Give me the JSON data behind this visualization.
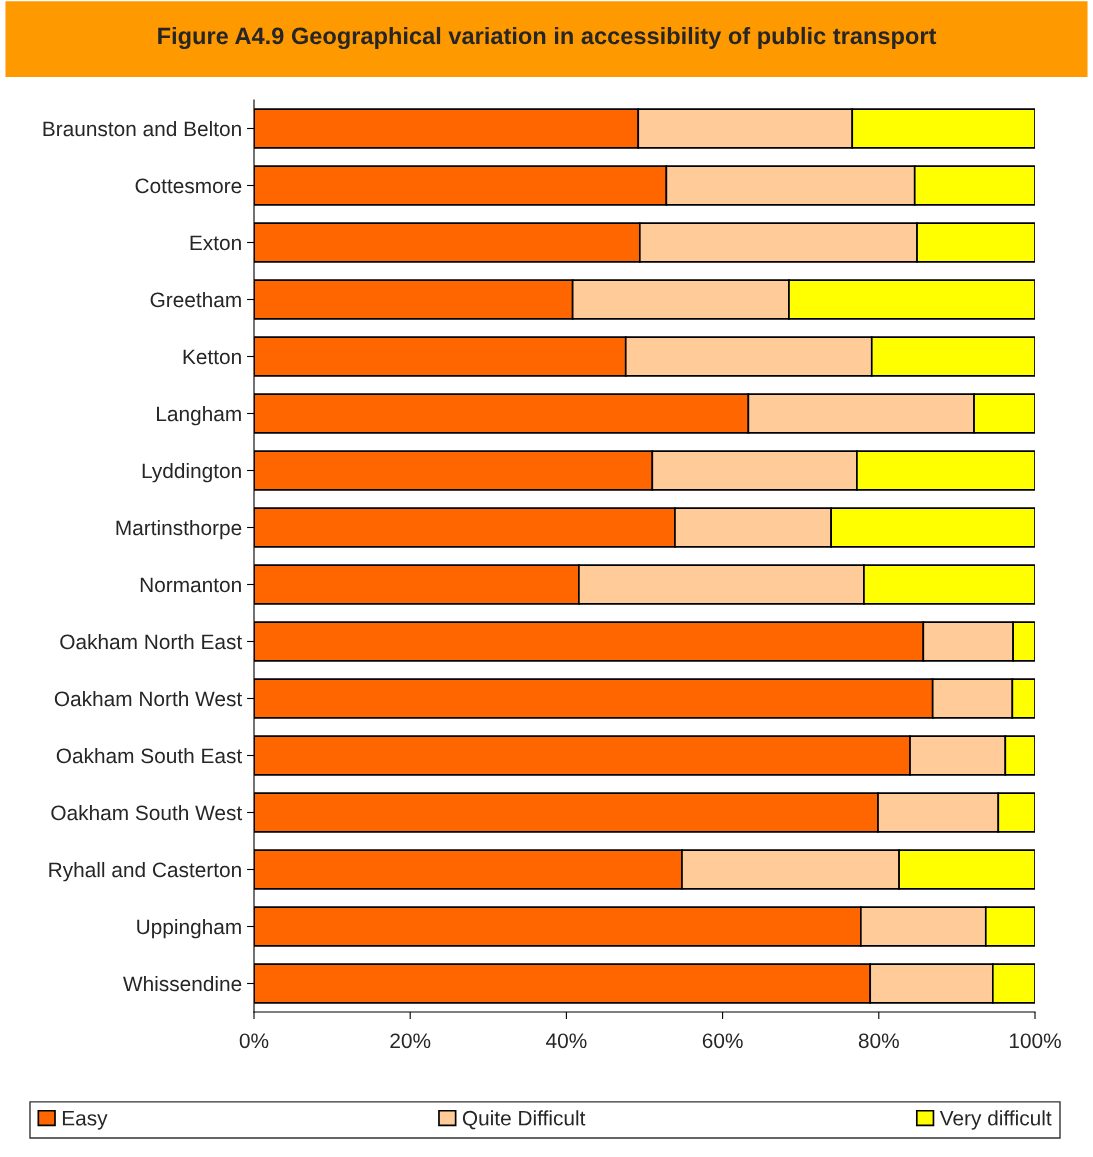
{
  "chart_data": {
    "type": "bar",
    "orientation": "horizontal",
    "stacked": true,
    "title": "Figure A4.9 Geographical variation in accessibility of public transport",
    "categories": [
      "Braunston and Belton",
      "Cottesmore",
      "Exton",
      "Greetham",
      "Ketton",
      "Langham",
      "Lyddington",
      "Martinsthorpe",
      "Normanton",
      "Oakham North East",
      "Oakham North West",
      "Oakham South East",
      "Oakham South West",
      "Ryhall and Casterton",
      "Uppingham",
      "Whissendine"
    ],
    "series": [
      {
        "name": "Easy",
        "color": "#ff6600",
        "values": [
          49.2,
          52.8,
          49.4,
          40.8,
          47.6,
          63.3,
          51.0,
          53.9,
          41.6,
          85.7,
          86.9,
          84.0,
          79.9,
          54.8,
          77.7,
          78.9
        ]
      },
      {
        "name": "Quite Difficult",
        "color": "#ffcc99",
        "values": [
          27.4,
          31.8,
          35.5,
          27.7,
          31.5,
          28.9,
          26.2,
          20.0,
          36.5,
          11.5,
          10.2,
          12.2,
          15.4,
          27.8,
          16.0,
          15.7
        ]
      },
      {
        "name": "Very difficult",
        "color": "#ffff00",
        "values": [
          23.4,
          15.4,
          15.1,
          31.5,
          20.9,
          7.8,
          22.8,
          26.1,
          21.9,
          2.8,
          2.9,
          3.8,
          4.7,
          17.4,
          6.3,
          5.4
        ]
      }
    ],
    "xlim": [
      0,
      100
    ],
    "xticks": [
      {
        "value": 0,
        "label": "0%"
      },
      {
        "value": 20,
        "label": "20%"
      },
      {
        "value": 40,
        "label": "40%"
      },
      {
        "value": 60,
        "label": "60%"
      },
      {
        "value": 80,
        "label": "80%"
      },
      {
        "value": 100,
        "label": "100%"
      }
    ],
    "grid": false,
    "legend": "bottom"
  }
}
